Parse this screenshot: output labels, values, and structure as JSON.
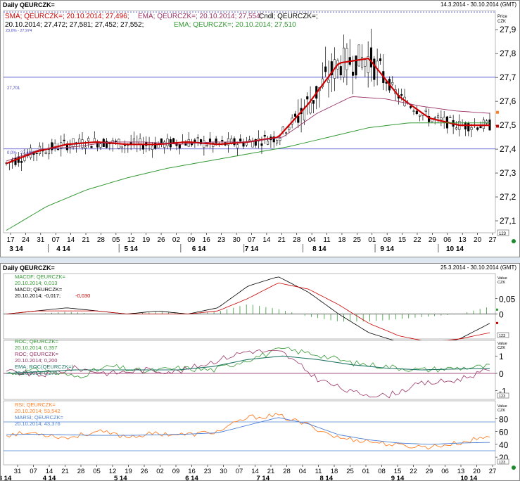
{
  "window1": {
    "title": "Daily QEURCZK=",
    "date_range": "14.3.2014 - 30.10.2014 (GMT)",
    "axis_caption": [
      "Price",
      "CZK"
    ],
    "legend": {
      "sma": "SMA; QEURCZK=; 20.10.2014; 27,496;",
      "ema": "EMA; QEURCZK=; 20.10.2014; 27,554;",
      "cndl_a": "Cndl; QEURCZK=;",
      "cndl_b": "20.10.2014; 27,472; 27,581; 27,452; 27,552;",
      "ema2": "EMA; QEURCZK=; 20.10.2014; 27,510"
    },
    "fib_label": "23,6% - 27,974",
    "hline_label": "27,701",
    "low_label": "0,0% - 27,401",
    "scale_box": "123"
  },
  "window2": {
    "title": "Daily QEURCZK=",
    "date_range": "25.3.2014 - 30.10.2014 (GMT)",
    "macd": {
      "l1": "MACDF; QEURCZK=",
      "l2": "20.10.2014; 0,013",
      "l3": "MACD; QEURCZK=",
      "l4a": "20.10.2014; -0,017;",
      "l4b": "-0,030",
      "axis_caption": [
        "Value",
        "CZK"
      ],
      "ticks": [
        "0,05",
        "0"
      ],
      "scale_box": "123"
    },
    "roc": {
      "l1": "ROC; QEURCZK=",
      "l2": "20.10.2014; 0,357",
      "l3": "ROC; QEURCZK=",
      "l4": "20.10.2014; 0,200",
      "l5": "EMA; ROC(QEURCZK=)",
      "l6": "20.10.2014; 0,273",
      "axis_caption": [
        "Value",
        "CZK"
      ],
      "ticks": [
        "1",
        "0",
        "-1"
      ],
      "scale_box": "123"
    },
    "rsi": {
      "l1": "RSI; QEURCZK=",
      "l2": "20.10.2014; 53,542",
      "l3": "MARSI; QEURCZK=",
      "l4": "20.10.2014; 43,376",
      "axis_caption": [
        "Value",
        "CZK"
      ],
      "ticks": [
        "80",
        "60",
        "40",
        "20"
      ],
      "scale_box": "123"
    }
  },
  "colors": {
    "sma": "#cc0000",
    "ema": "#993366",
    "ema2": "#339933",
    "candle": "#000000",
    "hline": "#4444cc",
    "macd_hist": "#339933",
    "macd_line": "#000000",
    "macd_signal": "#cc0000",
    "roc_green": "#339933",
    "roc_purple": "#993366",
    "roc_ema": "#227766",
    "rsi": "#ff7f27",
    "marsi": "#4a7fd4"
  },
  "chart_data": [
    {
      "type": "candlestick",
      "name": "price",
      "y_ticks": [
        "27,9",
        "27,8",
        "27,7",
        "27,6",
        "27,5",
        "27,4",
        "27,3",
        "27,2",
        "27,1"
      ],
      "ylim": [
        27.05,
        27.98
      ],
      "x_day_labels": [
        "17",
        "24",
        "31",
        "07",
        "14",
        "21",
        "28",
        "05",
        "12",
        "19",
        "26",
        "02",
        "09",
        "16",
        "23",
        "30",
        "07",
        "14",
        "21",
        "28",
        "04",
        "11",
        "18",
        "25",
        "01",
        "08",
        "15",
        "22",
        "29",
        "06",
        "13",
        "20",
        "27"
      ],
      "x_month_labels": [
        "3 14",
        "4 14",
        "5 14",
        "6 14",
        "7 14",
        "8 14",
        "9 14",
        "10 14"
      ],
      "series": [
        {
          "name": "SMA",
          "y_approx": [
            27.34,
            27.39,
            27.42,
            27.43,
            27.42,
            27.42,
            27.43,
            27.42,
            27.43,
            27.45,
            27.59,
            27.76,
            27.78,
            27.62,
            27.53,
            27.5,
            27.5
          ]
        },
        {
          "name": "EMA",
          "y_approx": [
            27.35,
            27.4,
            27.41,
            27.43,
            27.43,
            27.42,
            27.43,
            27.43,
            27.45,
            27.55,
            27.62,
            27.61,
            27.58,
            27.56,
            27.55
          ]
        },
        {
          "name": "EMA",
          "y_approx": [
            27.06,
            27.16,
            27.23,
            27.28,
            27.32,
            27.35,
            27.38,
            27.41,
            27.45,
            27.49,
            27.51,
            27.51,
            27.51
          ]
        }
      ],
      "hlines": [
        27.974,
        27.701,
        27.401
      ]
    },
    {
      "type": "line",
      "name": "MACD",
      "y_ticks": [
        "0,05",
        "0"
      ],
      "ylim": [
        -0.08,
        0.13
      ],
      "series": [
        {
          "name": "MACDF",
          "y_approx": [
            0.0,
            0.01,
            0.02,
            0.01,
            0.0,
            0.01,
            0.0,
            0.02,
            0.09,
            0.12,
            0.07,
            0.0,
            -0.06,
            -0.09,
            -0.1,
            -0.08,
            -0.03
          ]
        },
        {
          "name": "MACD",
          "y_approx": [
            0.0,
            0.01,
            0.01,
            0.01,
            0.0,
            0.0,
            0.0,
            0.01,
            0.05,
            0.1,
            0.08,
            0.03,
            -0.03,
            -0.07,
            -0.09,
            -0.08,
            -0.06
          ]
        }
      ]
    },
    {
      "type": "line",
      "name": "ROC",
      "y_ticks": [
        "1",
        "0",
        "-1"
      ],
      "ylim": [
        -1.5,
        1.9
      ],
      "series": [
        {
          "name": "ROC",
          "y_approx": [
            0.0,
            0.2,
            -0.2,
            0.4,
            0.1,
            0.3,
            0.2,
            0.8,
            1.4,
            1.1,
            0.6,
            0.4,
            0.2,
            0.3,
            0.4
          ]
        },
        {
          "name": "ROC",
          "y_approx": [
            0.1,
            -0.1,
            0.3,
            0.0,
            0.2,
            0.1,
            0.7,
            1.3,
            1.2,
            -0.3,
            -1.1,
            -1.3,
            -0.6,
            -0.4,
            0.2
          ]
        },
        {
          "name": "EMA",
          "y_approx": [
            0.0,
            0.1,
            0.2,
            0.2,
            0.2,
            0.2,
            0.4,
            0.8,
            1.0,
            0.8,
            0.5,
            0.3,
            0.2,
            0.25,
            0.27
          ]
        }
      ]
    },
    {
      "type": "line",
      "name": "RSI",
      "y_ticks": [
        "80",
        "60",
        "40",
        "20"
      ],
      "ylim": [
        8,
        108
      ],
      "hlines": [
        75,
        30
      ],
      "series": [
        {
          "name": "RSI",
          "y_approx": [
            55,
            58,
            50,
            60,
            52,
            57,
            55,
            60,
            82,
            85,
            70,
            50,
            45,
            38,
            36,
            42,
            53
          ]
        },
        {
          "name": "MARSI",
          "y_approx": [
            55,
            56,
            55,
            54,
            54,
            55,
            56,
            58,
            70,
            82,
            72,
            55,
            47,
            42,
            40,
            42,
            43
          ]
        }
      ]
    }
  ]
}
